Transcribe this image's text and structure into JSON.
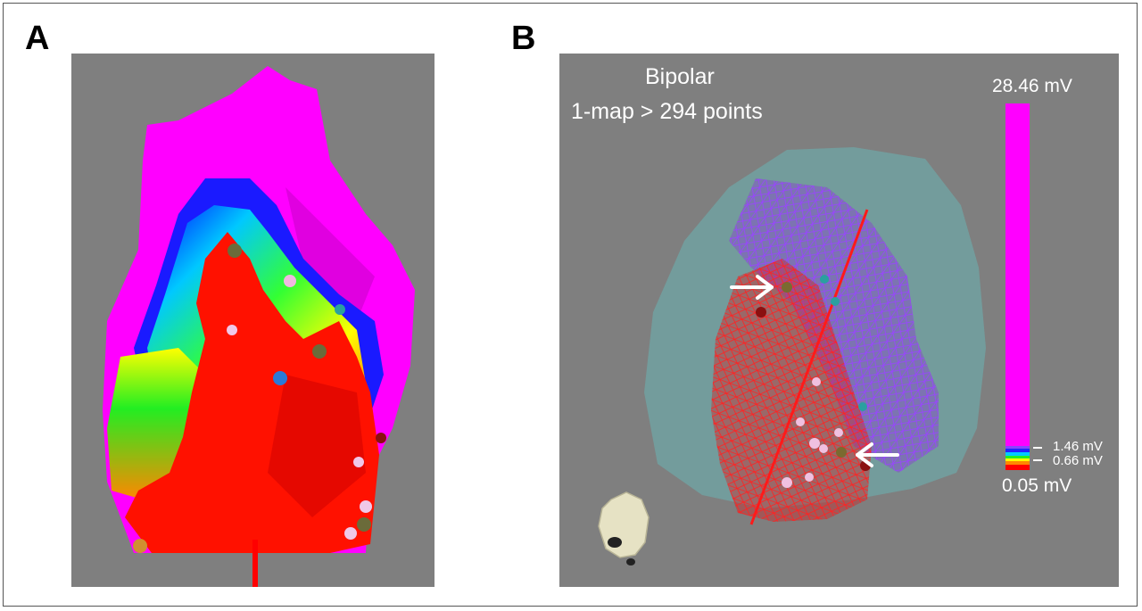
{
  "panels": [
    {
      "label": "A"
    },
    {
      "label": "B",
      "title_line1": "Bipolar",
      "title_line2": "1-map > 294 points",
      "scale": {
        "max_label": "28.46 mV",
        "upper_threshold_label": "1.46 mV",
        "lower_threshold_label": "0.66 mV",
        "min_label": "0.05 mV"
      }
    }
  ],
  "colors": {
    "background": "#7f7f7f",
    "high_voltage": "#ff00ff",
    "scar": "#ff0000",
    "shell": "#6fa5a5"
  }
}
